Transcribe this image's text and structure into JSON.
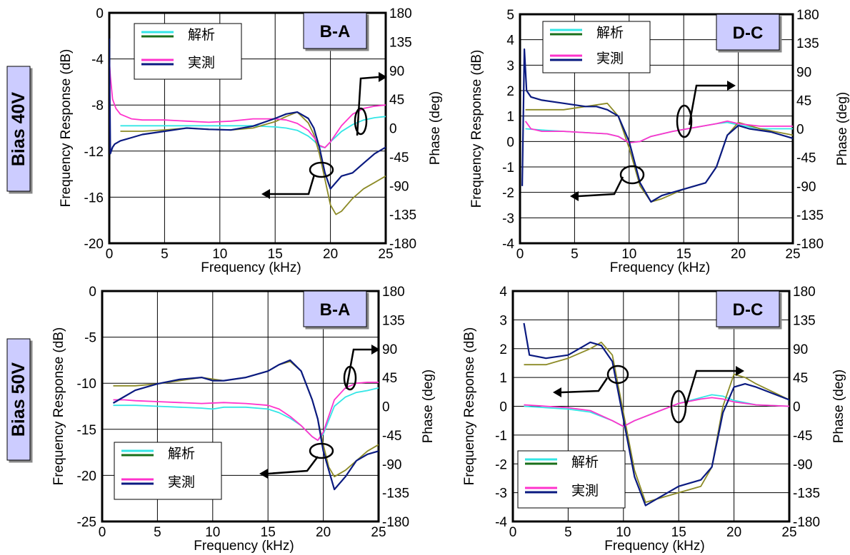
{
  "colors": {
    "calc_gain": "#33e6e6",
    "calc_phase": "#8c8a26",
    "meas_gain": "#ff33cc",
    "meas_phase": "#0a1a80",
    "legend_calc_phase": "#1a6e1a",
    "tag_bg": "#ccccff",
    "bias_bg": "#ccccff"
  },
  "rows": [
    {
      "bias_label": "Bias 40V"
    },
    {
      "bias_label": "Bias 50V"
    }
  ],
  "legend": {
    "calc": "解析",
    "meas": "実測"
  },
  "chart_data": [
    {
      "type": "line",
      "tag": "B-A",
      "xlabel": "Frequency (kHz)",
      "ylabel": "Frequency Response (dB)",
      "y2label": "Phase (deg)",
      "xlim": [
        0,
        25
      ],
      "ylim": [
        -20,
        0
      ],
      "y2lim": [
        -180,
        180
      ],
      "xticks": [
        "0",
        "5",
        "10",
        "15",
        "20",
        "25"
      ],
      "yticks": [
        "-20",
        "-16",
        "-12",
        "-8",
        "-4",
        "0"
      ],
      "y2ticks": [
        "-180",
        "-135",
        "-90",
        "-45",
        "0",
        "45",
        "90",
        "135",
        "180"
      ],
      "grid": true,
      "legend_position": "top-left",
      "series": [
        {
          "name": "解析",
          "axis": "gain",
          "color_key": "calc_gain",
          "x": [
            1,
            3,
            5,
            7,
            9,
            11,
            13,
            15,
            16,
            17,
            18,
            18.5,
            19,
            19.5,
            20,
            21,
            22,
            23,
            24,
            25
          ],
          "y": [
            -9.8,
            -9.8,
            -9.8,
            -9.8,
            -9.8,
            -9.8,
            -9.8,
            -9.9,
            -10,
            -10.2,
            -10.7,
            -11.1,
            -11.6,
            -11.7,
            -11.2,
            -10.3,
            -9.7,
            -9.3,
            -9.1,
            -9
          ]
        },
        {
          "name": "解析",
          "axis": "phase",
          "color_key": "calc_phase",
          "x": [
            1,
            3,
            5,
            7,
            9,
            11,
            13,
            15,
            16,
            17,
            18,
            18.5,
            19,
            19.5,
            20,
            20.5,
            21,
            22,
            23,
            24,
            25
          ],
          "y": [
            -5,
            -5,
            -3,
            0,
            -2,
            -3,
            0,
            10,
            18,
            25,
            8,
            -10,
            -40,
            -80,
            -120,
            -135,
            -130,
            -110,
            -95,
            -85,
            -75
          ]
        },
        {
          "name": "実測",
          "axis": "gain",
          "color_key": "meas_gain",
          "x": [
            0,
            0.1,
            0.3,
            0.6,
            1,
            2,
            3,
            5,
            7,
            9,
            11,
            13,
            15,
            16,
            17,
            18,
            18.5,
            19,
            19.5,
            20,
            21,
            22,
            23,
            24,
            25
          ],
          "y": [
            -4,
            -5.5,
            -7.5,
            -8.3,
            -8.8,
            -9.2,
            -9.3,
            -9.3,
            -9.4,
            -9.5,
            -9.4,
            -9.2,
            -9.2,
            -9.3,
            -9.6,
            -10.2,
            -10.8,
            -11.5,
            -11.7,
            -11.2,
            -9.8,
            -8.8,
            -8.3,
            -8.1,
            -8
          ]
        },
        {
          "name": "実測",
          "axis": "phase",
          "color_key": "meas_phase",
          "x": [
            0,
            0.1,
            0.3,
            0.5,
            1,
            2,
            3,
            5,
            7,
            9,
            11,
            13,
            15,
            16,
            17,
            18,
            18.5,
            19,
            19.5,
            20,
            21,
            22,
            23,
            24,
            25
          ],
          "y": [
            140,
            -40,
            -30,
            -25,
            -20,
            -15,
            -10,
            -5,
            0,
            -2,
            -3,
            3,
            15,
            22,
            25,
            15,
            0,
            -30,
            -70,
            -95,
            -75,
            -70,
            -55,
            -40,
            -30
          ]
        }
      ]
    },
    {
      "type": "line",
      "tag": "D-C",
      "xlabel": "Frequency (kHz)",
      "ylabel": "Frequency Response (dB)",
      "y2label": "Phase (deg)",
      "xlim": [
        0,
        25
      ],
      "ylim": [
        -4,
        5
      ],
      "y2lim": [
        -180,
        180
      ],
      "xticks": [
        "0",
        "5",
        "10",
        "15",
        "20",
        "25"
      ],
      "yticks": [
        "-4",
        "-3",
        "-2",
        "-1",
        "0",
        "1",
        "2",
        "3",
        "4",
        "5"
      ],
      "y2ticks": [
        "-180",
        "-135",
        "-90",
        "-45",
        "0",
        "45",
        "90",
        "135",
        "180"
      ],
      "grid": true,
      "legend_position": "top-left",
      "series": [
        {
          "name": "解析",
          "axis": "gain",
          "color_key": "calc_gain",
          "x": [
            0.5,
            2,
            4,
            6,
            8,
            9,
            10,
            11,
            12,
            14,
            16,
            18,
            19,
            20,
            22,
            25
          ],
          "y": [
            0.5,
            0.45,
            0.4,
            0.35,
            0.3,
            0.2,
            -0.05,
            0,
            0.2,
            0.4,
            0.55,
            0.7,
            0.75,
            0.65,
            0.5,
            0.5
          ]
        },
        {
          "name": "解析",
          "axis": "phase",
          "color_key": "calc_phase",
          "x": [
            0.5,
            2,
            4,
            6,
            8,
            9,
            10,
            11,
            12,
            13,
            15,
            17,
            18,
            19,
            20,
            21,
            22,
            25
          ],
          "y": [
            30,
            30,
            30,
            35,
            40,
            20,
            -30,
            -90,
            -115,
            -110,
            -95,
            -85,
            -60,
            -10,
            10,
            5,
            0,
            -10
          ]
        },
        {
          "name": "実測",
          "axis": "gain",
          "color_key": "meas_gain",
          "x": [
            0.5,
            1,
            2,
            4,
            6,
            8,
            9,
            10,
            11,
            12,
            14,
            16,
            18,
            19,
            20,
            22,
            25
          ],
          "y": [
            0.8,
            0.5,
            0.4,
            0.4,
            0.35,
            0.3,
            0.2,
            -0.05,
            0,
            0.2,
            0.4,
            0.55,
            0.7,
            0.8,
            0.7,
            0.6,
            0.6
          ]
        },
        {
          "name": "実測",
          "axis": "phase",
          "color_key": "meas_phase",
          "x": [
            0.2,
            0.4,
            0.6,
            1,
            2,
            4,
            6,
            7,
            8,
            9,
            10,
            11,
            12,
            13,
            15,
            17,
            18,
            19,
            20,
            21,
            23,
            25
          ],
          "y": [
            -90,
            125,
            60,
            50,
            45,
            40,
            35,
            35,
            30,
            20,
            -20,
            -85,
            -115,
            -105,
            -95,
            -85,
            -60,
            -10,
            5,
            0,
            -5,
            -15
          ]
        }
      ]
    },
    {
      "type": "line",
      "tag": "B-A",
      "xlabel": "Frequency (kHz)",
      "ylabel": "Frequency Response (dB)",
      "y2label": "Phase (deg)",
      "xlim": [
        0,
        25
      ],
      "ylim": [
        -25,
        0
      ],
      "y2lim": [
        -180,
        180
      ],
      "xticks": [
        "0",
        "5",
        "10",
        "15",
        "20",
        "25"
      ],
      "yticks": [
        "-25",
        "-20",
        "-15",
        "-10",
        "-5",
        "0"
      ],
      "y2ticks": [
        "-180",
        "-135",
        "-90",
        "-45",
        "0",
        "45",
        "90",
        "135",
        "180"
      ],
      "grid": true,
      "legend_position": "bottom-left",
      "series": [
        {
          "name": "解析",
          "axis": "gain",
          "color_key": "calc_gain",
          "x": [
            1,
            3,
            5,
            7,
            9,
            10,
            11,
            13,
            15,
            16,
            17,
            18,
            19,
            19.5,
            20,
            21,
            22,
            23,
            24,
            25
          ],
          "y": [
            -12.4,
            -12.4,
            -12.5,
            -12.6,
            -12.7,
            -12.8,
            -12.6,
            -12.6,
            -12.8,
            -13.2,
            -13.8,
            -14.6,
            -15.8,
            -16.2,
            -15.5,
            -12.5,
            -11.5,
            -11,
            -10.8,
            -10.5
          ]
        },
        {
          "name": "解析",
          "axis": "phase",
          "color_key": "calc_phase",
          "x": [
            1,
            3,
            5,
            7,
            9,
            11,
            13,
            15,
            16,
            17,
            18,
            19,
            19.5,
            20,
            20.5,
            21,
            22,
            23,
            24,
            25
          ],
          "y": [
            32,
            32,
            35,
            40,
            45,
            40,
            45,
            55,
            65,
            70,
            55,
            10,
            -20,
            -60,
            -95,
            -110,
            -100,
            -85,
            -70,
            -60
          ]
        },
        {
          "name": "実測",
          "axis": "gain",
          "color_key": "meas_gain",
          "x": [
            1,
            2,
            3,
            5,
            7,
            9,
            11,
            13,
            15,
            16,
            17,
            18,
            19,
            19.5,
            20,
            21,
            22,
            23,
            24,
            25
          ],
          "y": [
            -11.8,
            -11.8,
            -11.9,
            -12,
            -12.1,
            -12.2,
            -12.1,
            -12.2,
            -12.4,
            -12.8,
            -13.6,
            -14.6,
            -15.8,
            -16.2,
            -15.3,
            -11.8,
            -10.5,
            -10,
            -9.9,
            -9.9
          ]
        },
        {
          "name": "実測",
          "axis": "phase",
          "color_key": "meas_phase",
          "x": [
            1,
            2,
            3,
            5,
            7,
            9,
            10,
            11,
            13,
            15,
            16,
            17,
            18,
            19,
            19.5,
            20,
            20.5,
            21,
            22,
            23,
            24,
            25
          ],
          "y": [
            5,
            15,
            25,
            35,
            42,
            45,
            40,
            40,
            45,
            55,
            65,
            72,
            55,
            10,
            -20,
            -70,
            -100,
            -130,
            -110,
            -85,
            -75,
            -70
          ]
        }
      ]
    },
    {
      "type": "line",
      "tag": "D-C",
      "xlabel": "Frequency (kHz)",
      "ylabel": "Frequency Response (dB)",
      "y2label": "Phase (deg)",
      "xlim": [
        0,
        25
      ],
      "ylim": [
        -4,
        4
      ],
      "y2lim": [
        -180,
        180
      ],
      "xticks": [
        "0",
        "5",
        "10",
        "15",
        "20",
        "25"
      ],
      "yticks": [
        "-4",
        "-3",
        "-2",
        "-1",
        "0",
        "1",
        "2",
        "3",
        "4"
      ],
      "y2ticks": [
        "-180",
        "-135",
        "-90",
        "-45",
        "0",
        "45",
        "90",
        "135",
        "180"
      ],
      "grid": true,
      "legend_position": "bottom-left",
      "series": [
        {
          "name": "解析",
          "axis": "gain",
          "color_key": "calc_gain",
          "x": [
            1,
            3,
            5,
            7,
            9,
            10,
            11,
            13,
            15,
            17,
            18,
            19,
            20,
            22,
            25
          ],
          "y": [
            0,
            -0.05,
            -0.1,
            -0.2,
            -0.5,
            -0.7,
            -0.5,
            -0.2,
            0.1,
            0.3,
            0.4,
            0.35,
            0.2,
            0.05,
            0
          ]
        },
        {
          "name": "解析",
          "axis": "phase",
          "color_key": "calc_phase",
          "x": [
            1,
            3,
            5,
            7,
            8,
            9,
            10,
            11,
            12,
            13,
            15,
            17,
            18,
            19,
            20,
            21,
            22,
            25
          ],
          "y": [
            65,
            65,
            75,
            90,
            100,
            80,
            -10,
            -100,
            -150,
            -145,
            -135,
            -125,
            -95,
            0,
            50,
            45,
            35,
            10
          ]
        },
        {
          "name": "実測",
          "axis": "gain",
          "color_key": "meas_gain",
          "x": [
            1,
            3,
            5,
            7,
            9,
            10,
            11,
            13,
            15,
            17,
            18,
            19,
            20,
            22,
            25
          ],
          "y": [
            0.05,
            0,
            -0.05,
            -0.15,
            -0.5,
            -0.7,
            -0.5,
            -0.2,
            0.1,
            0.25,
            0.3,
            0.25,
            0.15,
            0.05,
            0
          ]
        },
        {
          "name": "実測",
          "axis": "phase",
          "color_key": "meas_phase",
          "x": [
            1,
            1.5,
            3,
            5,
            6,
            7,
            8,
            9,
            10,
            11,
            12,
            13,
            15,
            17,
            18,
            19,
            20,
            21,
            22,
            25
          ],
          "y": [
            130,
            80,
            75,
            80,
            90,
            100,
            95,
            70,
            -20,
            -110,
            -155,
            -145,
            -125,
            -115,
            -95,
            -10,
            30,
            35,
            30,
            10
          ]
        }
      ]
    }
  ]
}
